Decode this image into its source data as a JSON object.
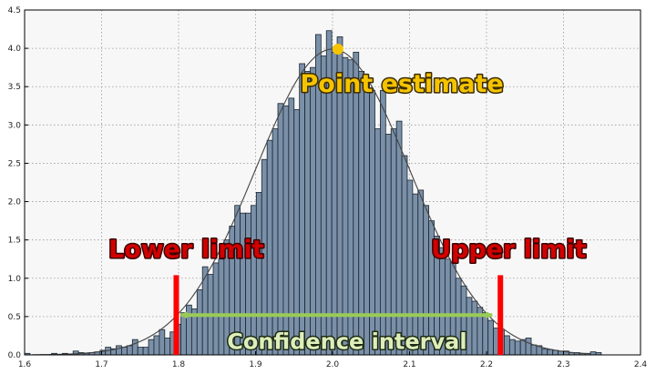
{
  "chart_data": {
    "type": "bar",
    "title": "",
    "xlabel": "",
    "ylabel": "",
    "xlim": [
      1.6,
      2.4
    ],
    "ylim": [
      0,
      4.5
    ],
    "grid": true,
    "x_ticks": [
      "1.6",
      "1.7",
      "1.8",
      "1.9",
      "2.0",
      "2.1",
      "2.2",
      "2.3",
      "2.4"
    ],
    "y_ticks": [
      "0.0",
      "0.5",
      "1.0",
      "1.5",
      "2.0",
      "2.5",
      "3.0",
      "3.5",
      "4.0",
      "4.5"
    ],
    "bin_start": 1.6,
    "bin_width": 0.007,
    "histogram_values": [
      0.02,
      0.0,
      0.0,
      0.0,
      0.0,
      0.02,
      0.0,
      0.02,
      0.0,
      0.05,
      0.03,
      0.02,
      0.03,
      0.04,
      0.06,
      0.1,
      0.08,
      0.12,
      0.1,
      0.12,
      0.2,
      0.1,
      0.1,
      0.2,
      0.25,
      0.33,
      0.22,
      0.3,
      0.4,
      0.55,
      0.65,
      0.6,
      0.85,
      1.15,
      1.05,
      1.2,
      1.25,
      1.5,
      1.68,
      1.95,
      1.85,
      1.85,
      1.95,
      2.12,
      2.55,
      2.8,
      2.95,
      3.28,
      3.25,
      3.35,
      3.2,
      3.8,
      3.7,
      3.75,
      4.18,
      3.9,
      4.23,
      3.95,
      4.15,
      3.88,
      3.85,
      3.95,
      3.7,
      3.6,
      3.45,
      2.95,
      3.45,
      2.88,
      2.95,
      3.05,
      2.6,
      2.28,
      2.1,
      2.15,
      1.95,
      1.75,
      1.55,
      1.4,
      1.25,
      1.2,
      1.0,
      0.9,
      0.75,
      0.7,
      0.62,
      0.55,
      0.45,
      0.35,
      0.32,
      0.25,
      0.2,
      0.18,
      0.2,
      0.22,
      0.13,
      0.12,
      0.08,
      0.07,
      0.06,
      0.05,
      0.05,
      0.03,
      0.03,
      0.02,
      0.02,
      0.04,
      0.03
    ],
    "density_curve": {
      "mean": 2.0,
      "sd": 0.1,
      "peak": 3.99
    },
    "point_estimate": {
      "x": 2.007,
      "y": 3.99,
      "label": "Point estimate"
    },
    "lower_limit": {
      "x": 1.797,
      "label": "Lower limit"
    },
    "upper_limit": {
      "x": 2.218,
      "label": "Upper limit"
    },
    "confidence_interval": {
      "from": 1.797,
      "to": 2.218,
      "label": "Confidence interval"
    },
    "colors": {
      "bar_fill": "#7a90a8",
      "bar_edge": "#1a2430",
      "plot_background": "#f7f7f7",
      "curve": "#444444",
      "point": "#f5c400",
      "limit_bars": "#ff0000",
      "interval_arrow": "#99cc55",
      "limit_text": "#d30000",
      "point_text": "#f5c400",
      "interval_text": "#ddeebb"
    }
  }
}
